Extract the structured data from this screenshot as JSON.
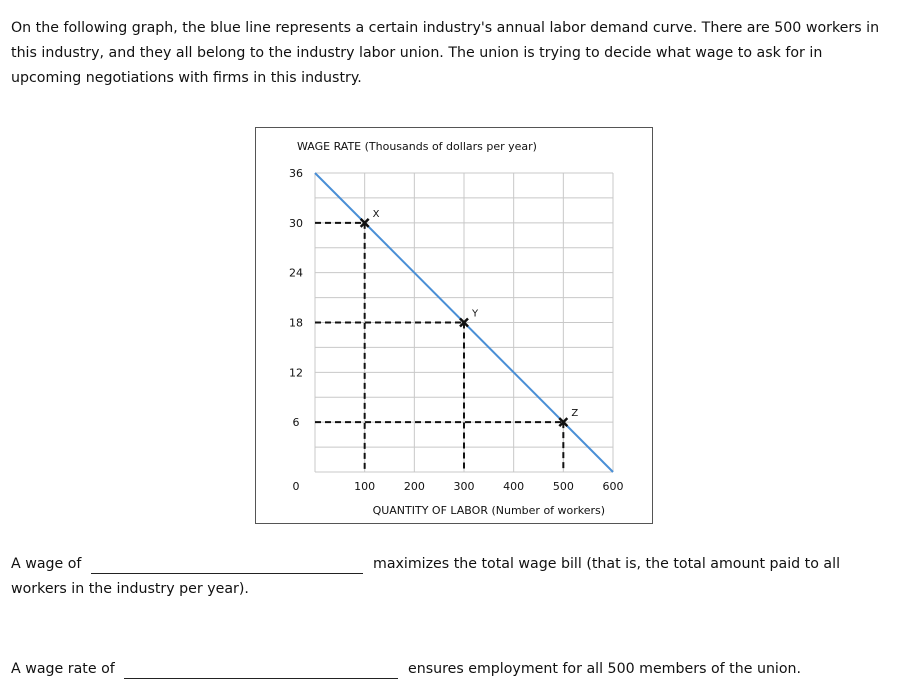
{
  "intro_text": "On the following graph, the blue line represents a certain industry's annual labor demand curve. There are 500 workers in this industry, and they all belong to the industry labor union. The union is trying to decide what wage to ask for in upcoming negotiations with firms in this industry.",
  "chart_data": {
    "type": "line",
    "title": "",
    "ylabel": "WAGE RATE (Thousands of dollars per year)",
    "xlabel": "QUANTITY OF LABOR (Number of workers)",
    "xlim": [
      0,
      600
    ],
    "ylim": [
      0,
      36
    ],
    "x_ticks": [
      100,
      200,
      300,
      400,
      500,
      600
    ],
    "y_ticks": [
      0,
      6,
      12,
      18,
      24,
      30,
      36
    ],
    "grid": true,
    "series": [
      {
        "x": [
          0,
          600
        ],
        "y": [
          36,
          0
        ],
        "color": "#4a8fd6"
      }
    ],
    "points": [
      {
        "label": "X",
        "x": 100,
        "y": 30
      },
      {
        "label": "Y",
        "x": 300,
        "y": 18
      },
      {
        "label": "Z",
        "x": 500,
        "y": 6
      }
    ]
  },
  "question1": {
    "prefix": "A wage of",
    "suffix": "maximizes the total wage bill (that is, the total amount paid to all",
    "continuation": "workers in the industry per year)."
  },
  "question2": {
    "prefix": "A wage rate of",
    "suffix": "ensures employment for all 500 members of the union."
  }
}
